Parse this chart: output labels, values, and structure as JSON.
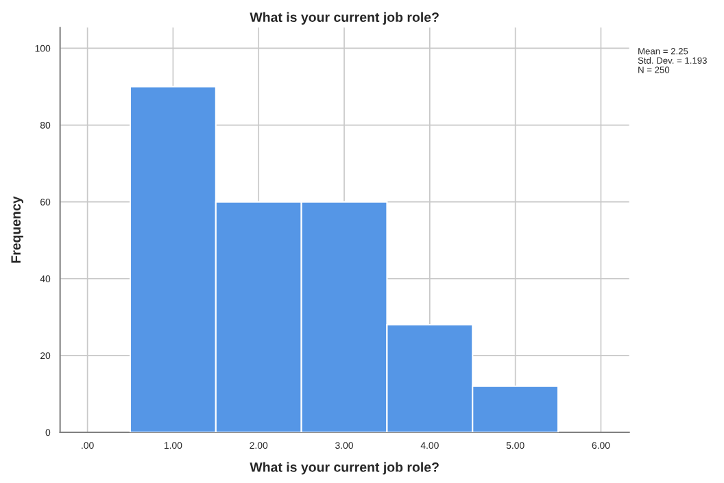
{
  "chart_data": {
    "type": "histogram",
    "title": "What is your current job role?",
    "xlabel": "What is your current job role?",
    "ylabel": "Frequency",
    "bins": [
      0.5,
      1.5,
      2.5,
      3.5,
      4.5,
      5.5
    ],
    "values": [
      90,
      60,
      60,
      28,
      12
    ],
    "color": "#5596e6",
    "xlim": [
      -0.32,
      6.33
    ],
    "xticks": [
      {
        "value": 0,
        "label": ".00"
      },
      {
        "value": 1,
        "label": "1.00"
      },
      {
        "value": 2,
        "label": "2.00"
      },
      {
        "value": 3,
        "label": "3.00"
      },
      {
        "value": 4,
        "label": "4.00"
      },
      {
        "value": 5,
        "label": "5.00"
      },
      {
        "value": 6,
        "label": "6.00"
      }
    ],
    "ylim": [
      0,
      105.4
    ],
    "yticks": [
      0,
      20,
      40,
      60,
      80,
      100
    ],
    "grid": true,
    "annotations": [
      "Mean = 2.25",
      "Std. Dev. = 1.193",
      "N = 250"
    ]
  }
}
